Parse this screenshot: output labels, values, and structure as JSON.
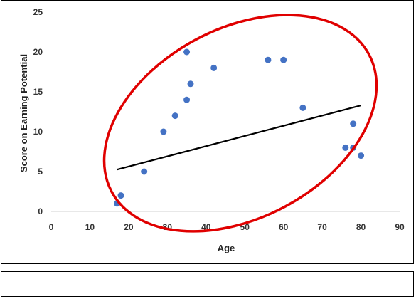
{
  "chart_data": {
    "type": "scatter",
    "title": "",
    "xlabel": "Age",
    "ylabel": "Score on Earning Potential",
    "xlim": [
      0,
      90
    ],
    "ylim": [
      0,
      25
    ],
    "xticks": [
      0,
      10,
      20,
      30,
      40,
      50,
      60,
      70,
      80,
      90
    ],
    "yticks": [
      0,
      5,
      10,
      15,
      20,
      25
    ],
    "grid": false,
    "legend": "none",
    "points": [
      {
        "x": 17,
        "y": 1
      },
      {
        "x": 18,
        "y": 2
      },
      {
        "x": 24,
        "y": 5
      },
      {
        "x": 29,
        "y": 10
      },
      {
        "x": 32,
        "y": 12
      },
      {
        "x": 35,
        "y": 14
      },
      {
        "x": 35,
        "y": 20
      },
      {
        "x": 36,
        "y": 16
      },
      {
        "x": 42,
        "y": 18
      },
      {
        "x": 56,
        "y": 19
      },
      {
        "x": 60,
        "y": 19
      },
      {
        "x": 65,
        "y": 13
      },
      {
        "x": 76,
        "y": 8
      },
      {
        "x": 78,
        "y": 11
      },
      {
        "x": 78,
        "y": 8
      },
      {
        "x": 80,
        "y": 7
      }
    ],
    "trendline": {
      "x": [
        17,
        80
      ],
      "y": [
        5.25,
        13.3
      ]
    },
    "annotation": {
      "shape": "ellipse",
      "color": "#e00000"
    },
    "colors": {
      "points": "#4472c4",
      "trendline": "#000000",
      "axis": "#d0d0d0"
    }
  },
  "caption": {
    "text": ""
  }
}
